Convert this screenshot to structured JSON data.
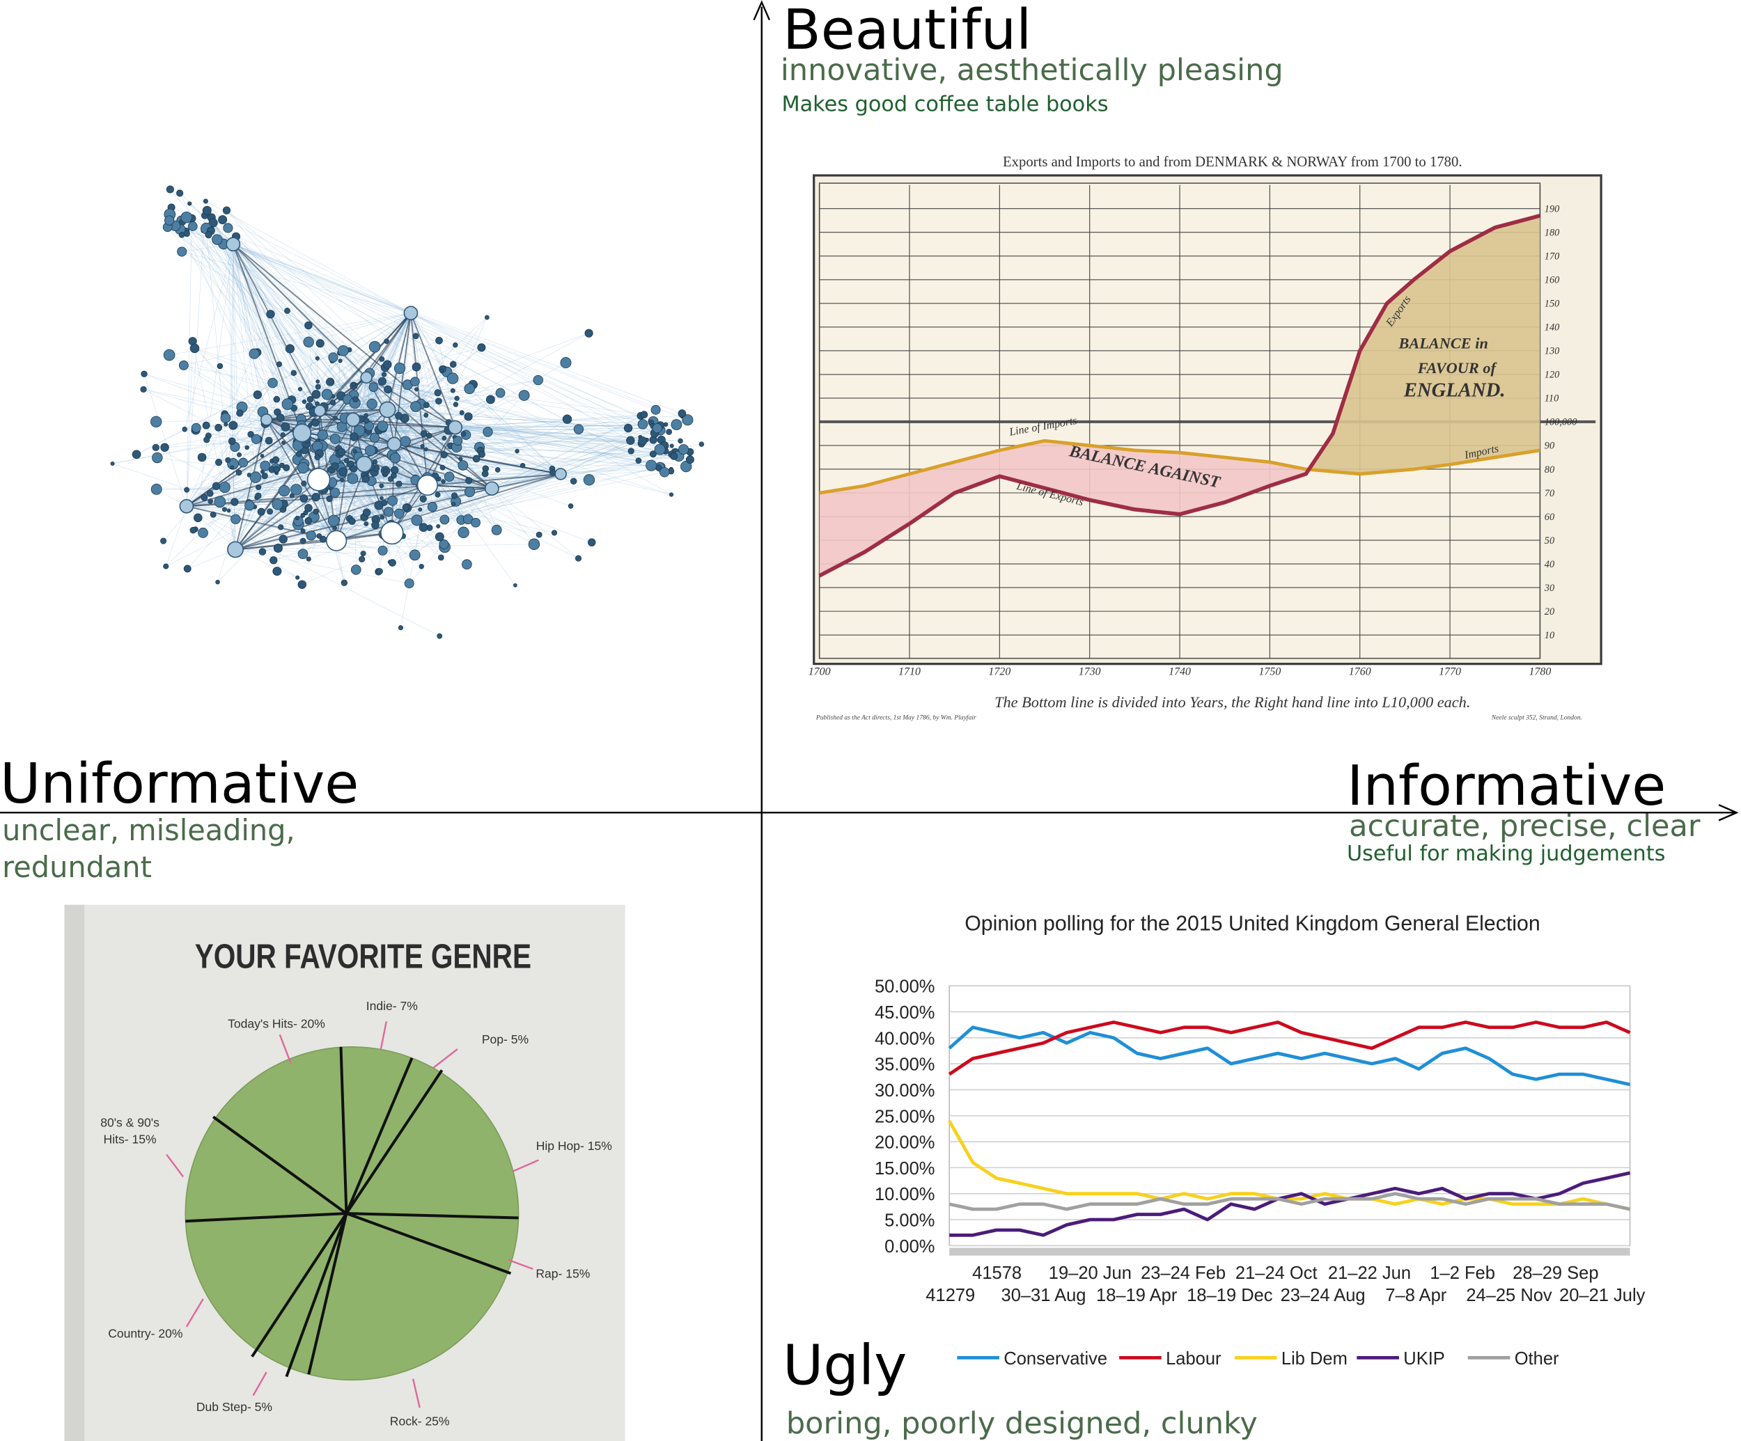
{
  "axes": {
    "top": {
      "title": "Beautiful",
      "subtitle": "innovative, aesthetically pleasing",
      "note": "Makes good coffee table books"
    },
    "left": {
      "title": "Uniformative",
      "subtitle_lines": [
        "unclear, misleading,",
        "redundant"
      ]
    },
    "right": {
      "title": "Informative",
      "subtitle": "accurate, precise, clear",
      "note": "Useful for making judgements"
    },
    "bottom": {
      "title": "Ugly",
      "subtitle": "boring,  poorly designed, clunky"
    }
  },
  "playfair": {
    "title": "Exports and Imports to and from DENMARK & NORWAY from 1700 to 1780.",
    "xlim": [
      1700,
      1780
    ],
    "ylim": [
      0,
      200
    ],
    "xticks": [
      1700,
      1710,
      1720,
      1730,
      1740,
      1750,
      1760,
      1770,
      1780
    ],
    "yticks": [
      10,
      20,
      30,
      40,
      50,
      60,
      70,
      80,
      90,
      {
        "value": 100,
        "label": "100,000"
      },
      110,
      120,
      130,
      140,
      150,
      160,
      170,
      180,
      190
    ],
    "x": [
      1700,
      1705,
      1710,
      1715,
      1720,
      1725,
      1730,
      1735,
      1740,
      1745,
      1750,
      1754,
      1757,
      1760,
      1763,
      1766,
      1770,
      1775,
      1780
    ],
    "imports": [
      70,
      73,
      78,
      83,
      88,
      92,
      90,
      88,
      87,
      85,
      83,
      80,
      79,
      78,
      79,
      80,
      82,
      85,
      88
    ],
    "exports": [
      35,
      45,
      57,
      70,
      77,
      72,
      67,
      63,
      61,
      66,
      73,
      78,
      95,
      130,
      150,
      160,
      172,
      182,
      187
    ],
    "annotations": [
      "BALANCE AGAINST",
      "BALANCE in",
      "FAVOUR of",
      "ENGLAND.",
      "Line of Imports",
      "Line of Exports",
      "Exports",
      "Imports"
    ],
    "footer": "The Bottom line is divided into Years, the Right hand line into L10,000 each.",
    "imprint_left": "Published as the Act directs, 1st May 1786, by Wm. Playfair",
    "imprint_right": "Neele sculpt 352, Strand, London."
  },
  "pie": {
    "title": "YOUR FAVORITE GENRE",
    "labels": [
      "Today's Hits- 20%",
      "Indie- 7%",
      "Pop- 5%",
      "Hip Hop- 15%",
      "Rap- 15%",
      "Rock- 25%",
      "Dub Step- 5%",
      "Country- 20%"
    ],
    "label_lines": [
      "80's & 90's",
      "Hits- 15%"
    ]
  },
  "polling": {
    "title": "Opinion polling for the 2015 United Kingdom General Election",
    "ylim": [
      0,
      50
    ],
    "yticks": [
      {
        "value": 0,
        "label": "0.00%"
      },
      {
        "value": 5,
        "label": "5.00%"
      },
      {
        "value": 10,
        "label": "10.00%"
      },
      {
        "value": 15,
        "label": "15.00%"
      },
      {
        "value": 20,
        "label": "20.00%"
      },
      {
        "value": 25,
        "label": "25.00%"
      },
      {
        "value": 30,
        "label": "30.00%"
      },
      {
        "value": 35,
        "label": "35.00%"
      },
      {
        "value": 40,
        "label": "40.00%"
      },
      {
        "value": 45,
        "label": "45.00%"
      },
      {
        "value": 50,
        "label": "50.00%"
      }
    ],
    "x_labels": [
      "41279",
      "41578",
      "30–31 Aug",
      "19–20 Jun",
      "18–19 Apr",
      "23–24 Feb",
      "18–19 Dec",
      "21–24 Oct",
      "23–24 Aug",
      "21–22 Jun",
      "7–8 Apr",
      "1–2 Feb",
      "24–25 Nov",
      "28–29 Sep",
      "20–21 July"
    ],
    "series": [
      {
        "name": "Conservative",
        "color": "#1f8fd6",
        "values": [
          38,
          42,
          41,
          40,
          41,
          39,
          41,
          40,
          37,
          36,
          37,
          38,
          35,
          36,
          37,
          36,
          37,
          36,
          35,
          36,
          34,
          37,
          38,
          36,
          33,
          32,
          33,
          33,
          32,
          31
        ]
      },
      {
        "name": "Labour",
        "color": "#cc0a1e",
        "values": [
          33,
          36,
          37,
          38,
          39,
          41,
          42,
          43,
          42,
          41,
          42,
          42,
          41,
          42,
          43,
          41,
          40,
          39,
          38,
          40,
          42,
          42,
          43,
          42,
          42,
          43,
          42,
          42,
          43,
          41
        ]
      },
      {
        "name": "Lib Dem",
        "color": "#f7d11c",
        "values": [
          24,
          16,
          13,
          12,
          11,
          10,
          10,
          10,
          10,
          9,
          10,
          9,
          10,
          10,
          9,
          9,
          10,
          9,
          9,
          8,
          9,
          8,
          9,
          9,
          8,
          8,
          8,
          9,
          8,
          7
        ]
      },
      {
        "name": "UKIP",
        "color": "#4b1c7a",
        "values": [
          2,
          2,
          3,
          3,
          2,
          4,
          5,
          5,
          6,
          6,
          7,
          5,
          8,
          7,
          9,
          10,
          8,
          9,
          10,
          11,
          10,
          11,
          9,
          10,
          10,
          9,
          10,
          12,
          13,
          14
        ]
      },
      {
        "name": "Other",
        "color": "#a0a0a0",
        "values": [
          8,
          7,
          7,
          8,
          8,
          7,
          8,
          8,
          8,
          9,
          8,
          8,
          9,
          9,
          9,
          8,
          9,
          9,
          9,
          10,
          9,
          9,
          8,
          9,
          9,
          9,
          8,
          8,
          8,
          7
        ]
      }
    ]
  }
}
